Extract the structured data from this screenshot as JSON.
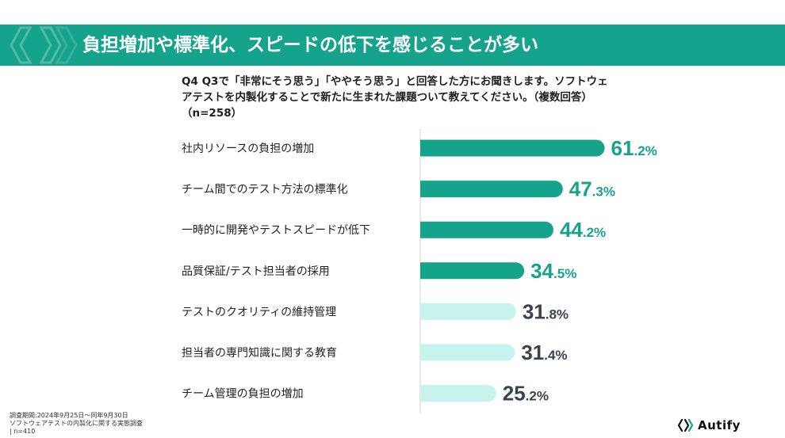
{
  "header": {
    "title": "負担増加や標準化、スピードの低下を感じることが多い"
  },
  "question": {
    "line1": "Q4 Q3で「非常にそう思う」「ややそう思う」と回答した方にお聞きします。ソフトウェ",
    "line2": "アテストを内製化することで新たに生まれた課題ついて教えてください。（複数回答）",
    "line3": "（n=258）"
  },
  "chart_data": {
    "type": "bar",
    "orientation": "horizontal",
    "categories": [
      "社内リソースの負担の増加",
      "チーム間でのテスト方法の標準化",
      "一時的に開発やテストスピードが低下",
      "品質保証/テスト担当者の採用",
      "テストのクオリティの維持管理",
      "担当者の専門知識に関する教育",
      "チーム管理の負担の増加"
    ],
    "values": [
      61.2,
      47.3,
      44.2,
      34.5,
      31.8,
      31.4,
      25.2
    ],
    "value_labels": [
      {
        "int": "61",
        "dec": ".2%"
      },
      {
        "int": "47",
        "dec": ".3%"
      },
      {
        "int": "44",
        "dec": ".2%"
      },
      {
        "int": "34",
        "dec": ".5%"
      },
      {
        "int": "31",
        "dec": ".8%"
      },
      {
        "int": "31",
        "dec": ".4%"
      },
      {
        "int": "25",
        "dec": ".2%"
      }
    ],
    "highlight_count": 4,
    "colors": {
      "highlight_bar": "#16a38c",
      "normal_bar": "#c6f4ec",
      "highlight_label": "#16a38c",
      "normal_label": "#3c4150"
    },
    "xlim": [
      0,
      100
    ],
    "grid": false,
    "legend": "none",
    "title": "",
    "xlabel": "",
    "ylabel": ""
  },
  "footnote": {
    "line1": "調査期間:2024年9月25日～同年9月30日",
    "line2": "ソフトウェアテストの内製化に関する実態調査",
    "line3": "| n=410"
  },
  "logo": {
    "icon": "autify-bracket-icon",
    "text": "Autify"
  },
  "colors": {
    "brand": "#16a38c",
    "title_text": "#ffffff"
  }
}
